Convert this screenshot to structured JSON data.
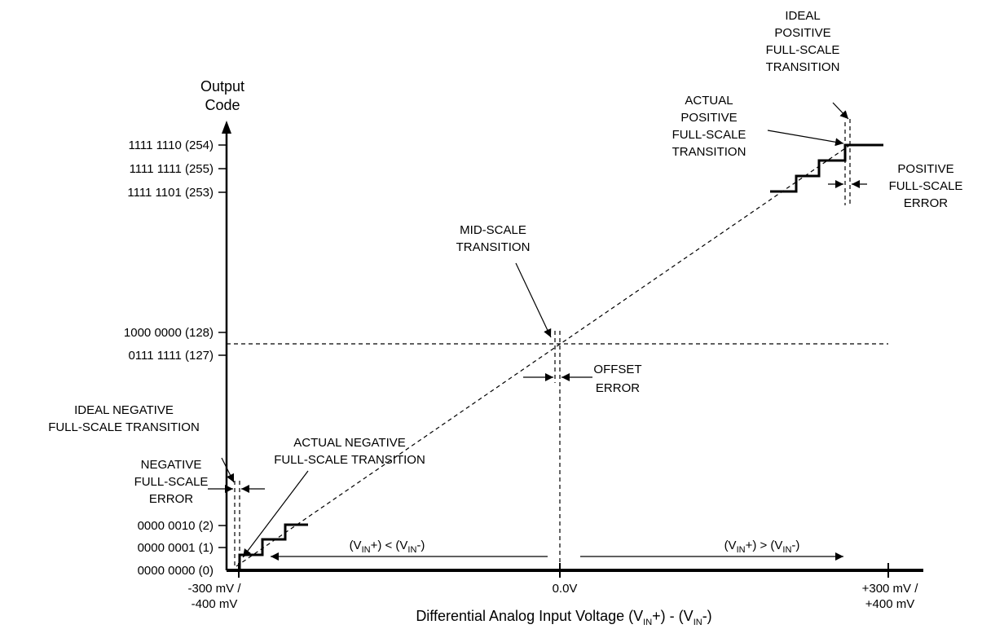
{
  "y_axis": {
    "title_line1": "Output",
    "title_line2": "Code",
    "ticks_top": [
      "1111 1110 (254)",
      "1111 1111 (255)",
      "1111 1101 (253)"
    ],
    "ticks_mid": [
      "1000 0000 (128)",
      "0111 1111 (127)"
    ],
    "ticks_bottom": [
      "0000 0010 (2)",
      "0000 0001 (1)",
      "0000 0000 (0)"
    ]
  },
  "x_axis": {
    "left_line1": "-300 mV /",
    "left_line2": "-400 mV",
    "center": "0.0V",
    "right_line1": "+300 mV /",
    "right_line2": "+400 mV",
    "title_prefix": "Differential Analog Input Voltage (V",
    "title_sub1": "IN",
    "title_mid": "+) - (V",
    "title_sub2": "IN",
    "title_suffix": "-)"
  },
  "annotations": {
    "ideal_pos": [
      "IDEAL",
      "POSITIVE",
      "FULL-SCALE",
      "TRANSITION"
    ],
    "actual_pos": [
      "ACTUAL",
      "POSITIVE",
      "FULL-SCALE",
      "TRANSITION"
    ],
    "pos_error": [
      "POSITIVE",
      "FULL-SCALE",
      "ERROR"
    ],
    "mid_scale": [
      "MID-SCALE",
      "TRANSITION"
    ],
    "offset_error": [
      "OFFSET",
      "ERROR"
    ],
    "ideal_neg": [
      "IDEAL NEGATIVE",
      "FULL-SCALE TRANSITION"
    ],
    "actual_neg": [
      "ACTUAL NEGATIVE",
      "FULL-SCALE TRANSITION"
    ],
    "neg_error": [
      "NEGATIVE",
      "FULL-SCALE",
      "ERROR"
    ]
  },
  "regions": {
    "left": {
      "p1": "(V",
      "s1": "IN",
      "p2": "+) < (V",
      "s2": "IN",
      "p3": "-)"
    },
    "right": {
      "p1": "(V",
      "s1": "IN",
      "p2": "+) > (V",
      "s2": "IN",
      "p3": "-)"
    }
  }
}
